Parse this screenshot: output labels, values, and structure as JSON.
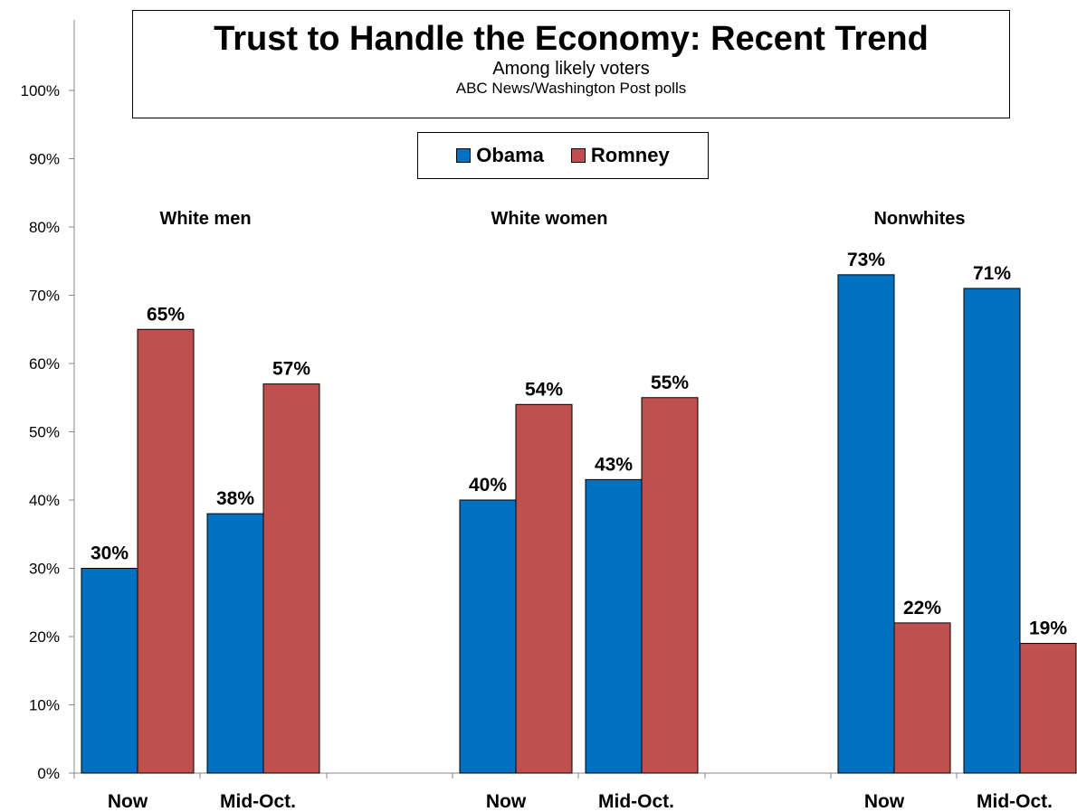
{
  "chart_data": {
    "type": "bar",
    "title": "Trust to Handle the Economy:  Recent Trend",
    "subtitle": "Among likely voters",
    "source": "ABC News/Washington Post polls",
    "groups": [
      "White men",
      "White women",
      "Nonwhites"
    ],
    "categories": [
      "Now",
      "Mid-Oct.",
      "Now",
      "Mid-Oct.",
      "Now",
      "Mid-Oct."
    ],
    "series": [
      {
        "name": "Obama",
        "color": "#0070C0",
        "values": [
          30,
          38,
          40,
          43,
          73,
          71
        ]
      },
      {
        "name": "Romney",
        "color": "#C0504D",
        "values": [
          65,
          57,
          54,
          55,
          22,
          19
        ]
      }
    ],
    "ylim": [
      0,
      100
    ],
    "yticks": [
      "0%",
      "10%",
      "20%",
      "30%",
      "40%",
      "50%",
      "60%",
      "70%",
      "80%",
      "90%",
      "100%"
    ],
    "value_suffix": "%",
    "legend_position": "top-center",
    "grid": false
  }
}
